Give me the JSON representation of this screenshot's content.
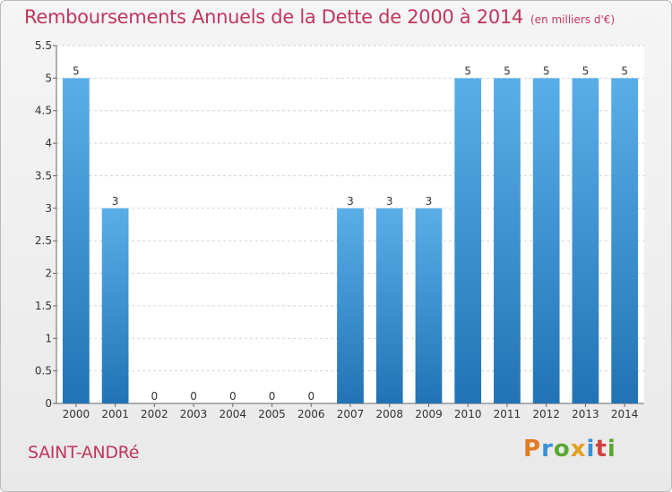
{
  "title": "Remboursements Annuels de la Dette de 2000 à 2014",
  "subtitle": "(en milliers d'€)",
  "place_name": "SAINT-ANDRé",
  "logo": {
    "text": "Proxiti",
    "letters": [
      {
        "char": "P",
        "color": "#e07b22"
      },
      {
        "char": "r",
        "color": "#3a8fd6"
      },
      {
        "char": "o",
        "color": "#5aa832"
      },
      {
        "char": "x",
        "color": "#e0a020"
      },
      {
        "char": "i",
        "color": "#3a8fd6"
      },
      {
        "char": "t",
        "color": "#d04040"
      },
      {
        "char": "i",
        "color": "#5aa832"
      }
    ]
  },
  "colors": {
    "title": "#c0365e",
    "bar_top": "#5aaee8",
    "bar_bottom": "#2273b4",
    "grid": "#d2d2d2"
  },
  "chart_data": {
    "type": "bar",
    "categories": [
      "2000",
      "2001",
      "2002",
      "2003",
      "2004",
      "2005",
      "2006",
      "2007",
      "2008",
      "2009",
      "2010",
      "2011",
      "2012",
      "2013",
      "2014"
    ],
    "values": [
      5,
      3,
      0,
      0,
      0,
      0,
      0,
      3,
      3,
      3,
      5,
      5,
      5,
      5,
      5
    ],
    "data_labels": [
      "5",
      "3",
      "0",
      "0",
      "0",
      "0",
      "0",
      "3",
      "3",
      "3",
      "5",
      "5",
      "5",
      "5",
      "5"
    ],
    "y_ticks": [
      0,
      0.5,
      1,
      1.5,
      2,
      2.5,
      3,
      3.5,
      4,
      4.5,
      5,
      5.5
    ],
    "y_tick_labels": [
      "0",
      "0.5",
      "1",
      "1.5",
      "2",
      "2.5",
      "3",
      "3.5",
      "4",
      "4.5",
      "5",
      "5.5"
    ],
    "ylim": [
      0,
      5.5
    ],
    "grid": true
  }
}
